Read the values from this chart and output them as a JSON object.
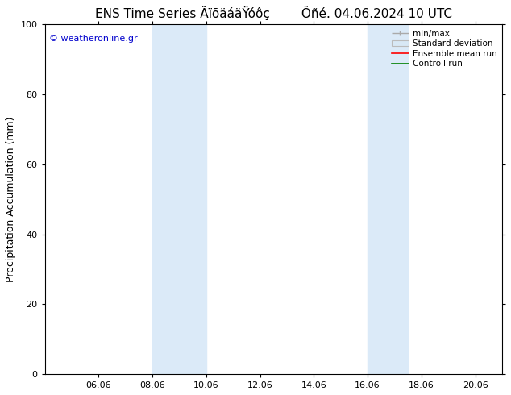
{
  "title": "ENS Time Series ÃïõäáäŸóôç        Ôñé. 04.06.2024 10 UTC",
  "ylabel": "Precipitation Accumulation (mm)",
  "xlabel": "",
  "ylim": [
    0,
    100
  ],
  "xtick_labels": [
    "06.06",
    "08.06",
    "10.06",
    "12.06",
    "14.06",
    "16.06",
    "18.06",
    "20.06"
  ],
  "xtick_positions": [
    2,
    4,
    6,
    8,
    10,
    12,
    14,
    16
  ],
  "xlim": [
    0,
    17
  ],
  "shaded_bands": [
    {
      "x_start": 4,
      "x_end": 6
    },
    {
      "x_start": 12,
      "x_end": 13.5
    }
  ],
  "background_color": "#ffffff",
  "band_color": "#dbeaf8",
  "copyright_text": "© weatheronline.gr",
  "copyright_color": "#0000cc",
  "legend_entries": [
    "min/max",
    "Standard deviation",
    "Ensemble mean run",
    "Controll run"
  ],
  "legend_line_colors": [
    "#aaaaaa",
    "#cccccc",
    "#ff0000",
    "#008000"
  ],
  "title_fontsize": 11,
  "axis_fontsize": 9,
  "tick_fontsize": 8,
  "legend_fontsize": 7.5
}
